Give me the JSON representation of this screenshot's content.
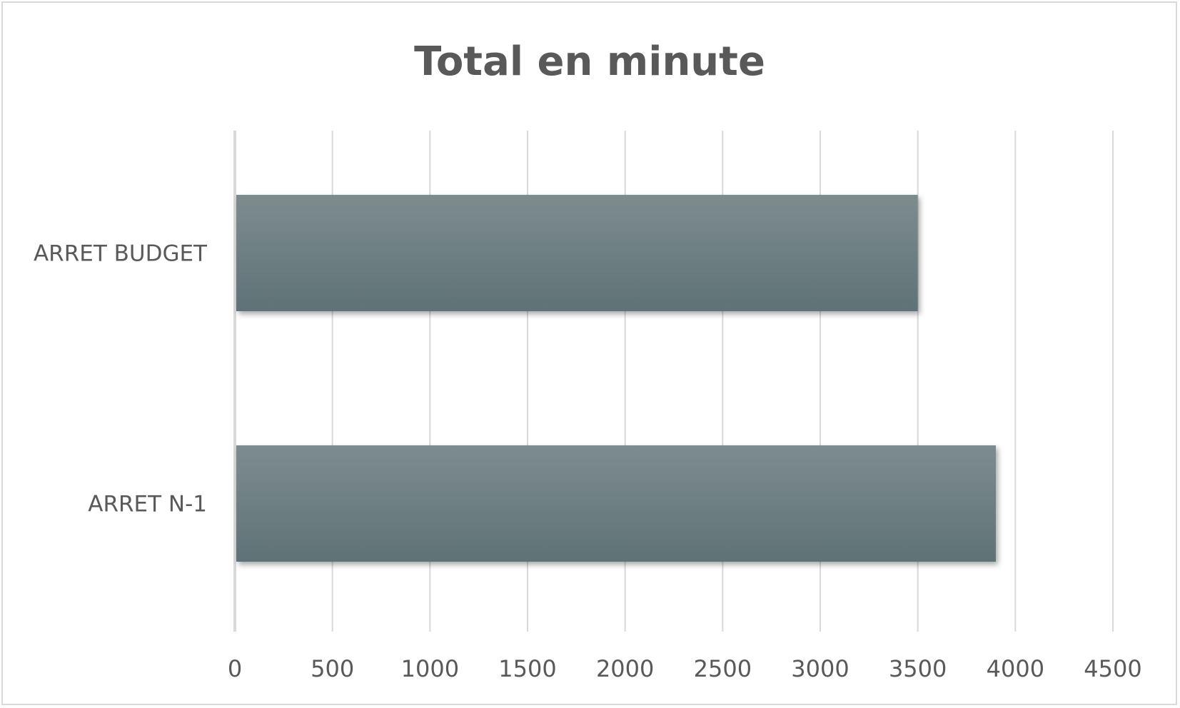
{
  "chart_data": {
    "type": "bar",
    "orientation": "horizontal",
    "title": "Total en minute",
    "xlabel": "",
    "ylabel": "",
    "categories": [
      "ARRET BUDGET",
      "ARRET N-1"
    ],
    "values": [
      3500,
      3900
    ],
    "xlim": [
      0,
      4500
    ],
    "xticks": [
      "0",
      "500",
      "1000",
      "1500",
      "2000",
      "2500",
      "3000",
      "3500",
      "4000",
      "4500"
    ],
    "grid": "vertical",
    "legend": "none",
    "colors": {
      "bar_top": "#7d8c8f",
      "bar_bottom": "#5f7275",
      "grid": "#d9d9d9",
      "text": "#595959"
    }
  }
}
